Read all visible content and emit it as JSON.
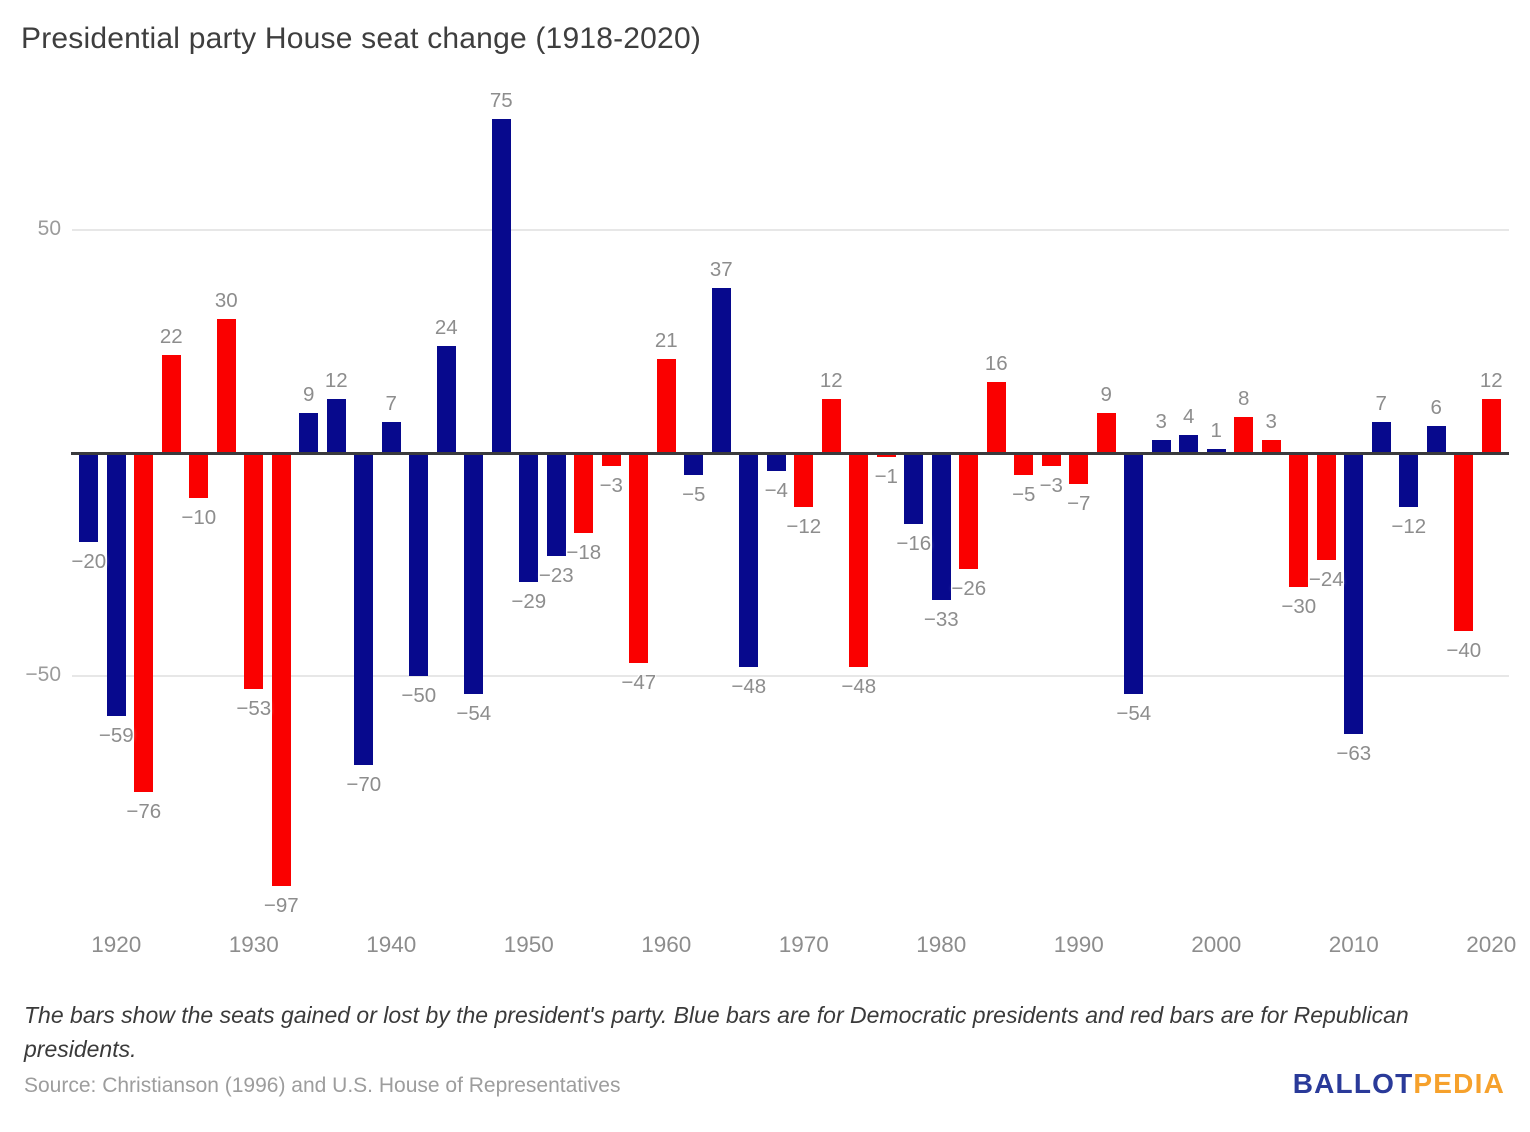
{
  "title": "Presidential party House seat change (1918-2020)",
  "footnote": "The bars show the seats gained or lost by the president's party. Blue bars are for Democratic presidents and red bars are for Republican presidents.",
  "source": "Source: Christianson (1996) and U.S. House of Representatives",
  "logo": {
    "part1": "BALLOT",
    "part2": "PEDIA",
    "color1": "#2a3a99",
    "color2": "#f6a12c"
  },
  "colors": {
    "democratic_bar": "#07098d",
    "republican_bar": "#fa0000",
    "value_label": "#8d8d8d",
    "axis_line": "#3a3a3d",
    "gridline": "#e7e7e7"
  },
  "chart_data": {
    "type": "bar",
    "title": "Presidential party House seat change (1918-2020)",
    "xlabel": "",
    "ylabel": "",
    "x": [
      1918,
      1920,
      1922,
      1924,
      1926,
      1928,
      1930,
      1932,
      1934,
      1936,
      1938,
      1940,
      1942,
      1944,
      1946,
      1948,
      1950,
      1952,
      1954,
      1956,
      1958,
      1960,
      1962,
      1964,
      1966,
      1968,
      1970,
      1972,
      1974,
      1976,
      1978,
      1980,
      1982,
      1984,
      1986,
      1988,
      1990,
      1992,
      1994,
      1996,
      1998,
      2000,
      2002,
      2004,
      2006,
      2008,
      2010,
      2012,
      2014,
      2016,
      2018,
      2020
    ],
    "values": [
      -20,
      -59,
      -76,
      22,
      -10,
      30,
      -53,
      -97,
      9,
      12,
      -70,
      7,
      -50,
      24,
      -54,
      75,
      -29,
      -23,
      -18,
      -3,
      -47,
      21,
      -5,
      37,
      -48,
      -4,
      -12,
      12,
      -48,
      -1,
      -16,
      -33,
      -26,
      16,
      -5,
      -3,
      -7,
      9,
      -54,
      3,
      4,
      1,
      8,
      3,
      -30,
      -24,
      -63,
      7,
      -12,
      6,
      -40,
      12
    ],
    "party": [
      "D",
      "D",
      "R",
      "R",
      "R",
      "R",
      "R",
      "R",
      "D",
      "D",
      "D",
      "D",
      "D",
      "D",
      "D",
      "D",
      "D",
      "D",
      "R",
      "R",
      "R",
      "R",
      "D",
      "D",
      "D",
      "D",
      "R",
      "R",
      "R",
      "R",
      "D",
      "D",
      "R",
      "R",
      "R",
      "R",
      "R",
      "R",
      "D",
      "D",
      "D",
      "D",
      "R",
      "R",
      "R",
      "R",
      "D",
      "D",
      "D",
      "D",
      "R",
      "R"
    ],
    "party_colors": {
      "D": "#07098d",
      "R": "#fa0000"
    },
    "xticks": [
      1920,
      1930,
      1940,
      1950,
      1960,
      1970,
      1980,
      1990,
      2000,
      2010,
      2020
    ],
    "yticks": [
      50,
      -50
    ],
    "ylim": [
      -100,
      84
    ],
    "grid": "horizontal",
    "legend": "none",
    "data_labels": "on"
  }
}
